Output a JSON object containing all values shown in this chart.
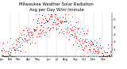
{
  "title": "Milwaukee Weather Solar Radiation",
  "subtitle": "Avg per Day W/m²/minute",
  "title_fontsize": 3.8,
  "bg_color": "#ffffff",
  "dot_color_red": "#ff0000",
  "dot_color_black": "#000000",
  "ylabel_fontsize": 3.0,
  "xlabel_fontsize": 2.5,
  "ylim": [
    0,
    6
  ],
  "yticks": [
    1,
    2,
    3,
    4,
    5
  ],
  "num_points": 365,
  "seed": 42
}
